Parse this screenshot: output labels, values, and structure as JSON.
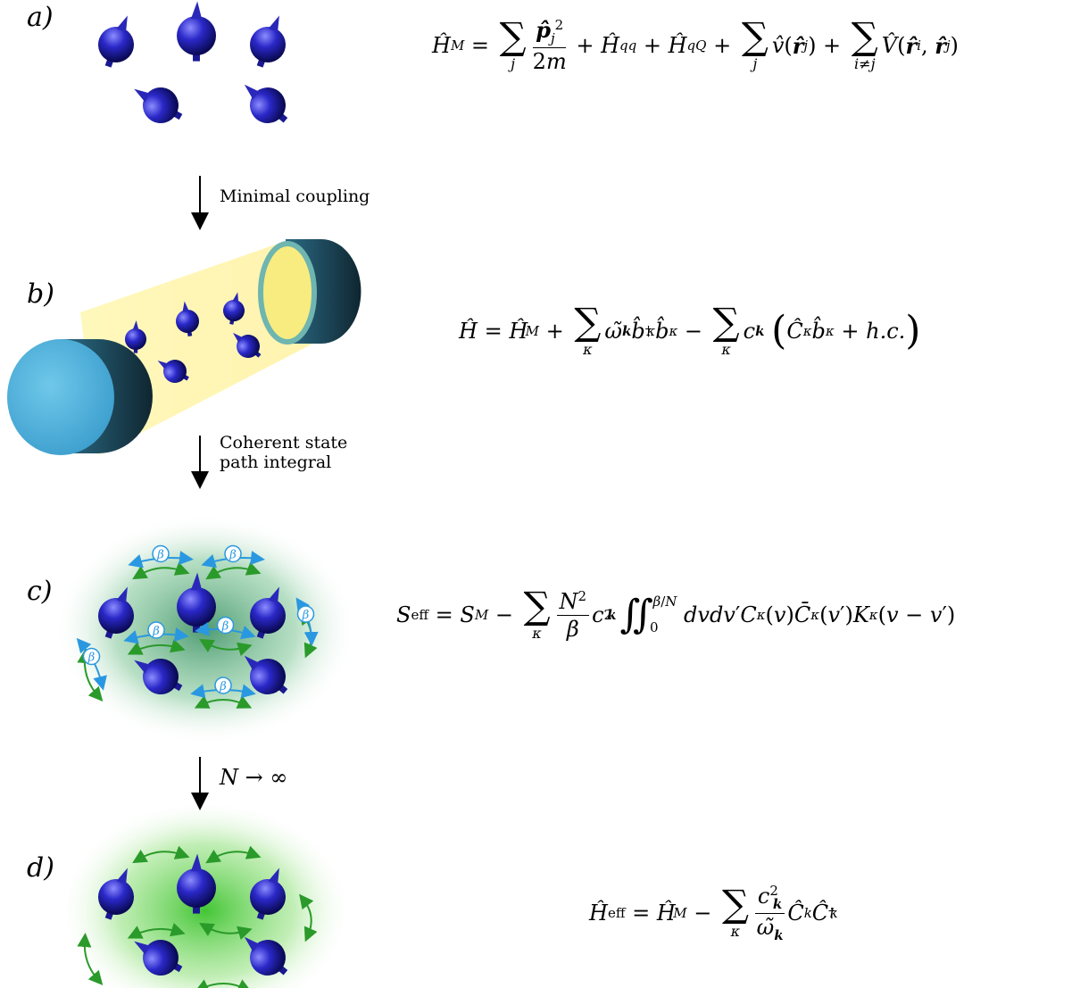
{
  "panels": [
    {
      "label": "a)"
    },
    {
      "label": "b)"
    },
    {
      "label": "c)"
    },
    {
      "label": "d)"
    }
  ],
  "arrows": [
    {
      "text": "Minimal coupling"
    },
    {
      "line1": "Coherent state",
      "line2": "path integral"
    },
    {
      "text": "N → ∞"
    }
  ],
  "bubble_symbol": "β",
  "colors": {
    "particle": "#2a28b8",
    "mirror_face": "#4aaed6",
    "mirror_side": "#173a4a",
    "beam": "#fff4a0",
    "exchange_green": "#2a9a2a",
    "bubble_blue": "#2a98e0",
    "glow_c": "#5aa87a",
    "glow_d": "#4ccf3a"
  }
}
